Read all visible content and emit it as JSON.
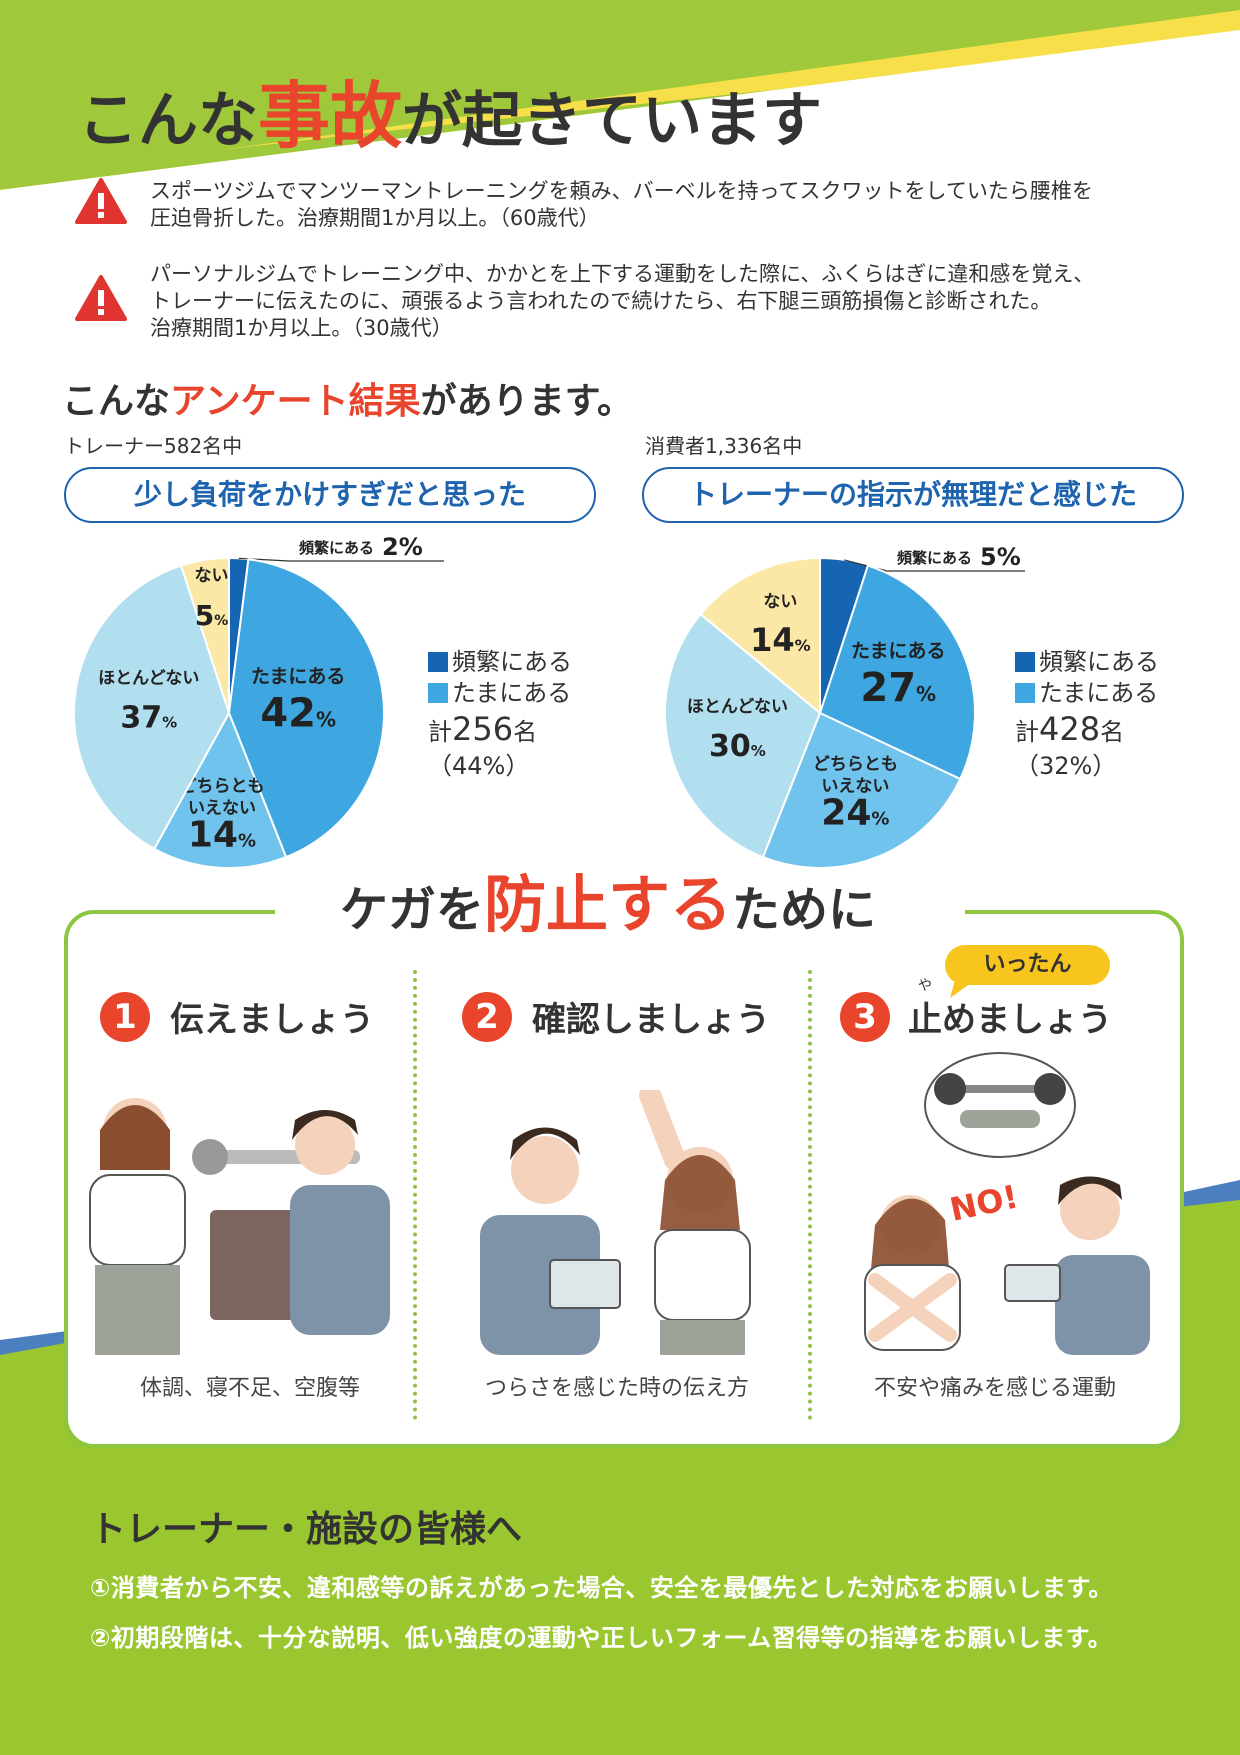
{
  "header": {
    "title_pre": "こんな",
    "title_em": "事故",
    "title_post": "が起きています"
  },
  "accidents": [
    {
      "icon": "warning-icon",
      "lines": [
        "スポーツジムでマンツーマントレーニングを頼み、バーベルを持ってスクワットをしていたら腰椎を",
        "圧迫骨折した。治療期間1か月以上。（60歳代）"
      ]
    },
    {
      "icon": "warning-icon",
      "lines": [
        "パーソナルジムでトレーニング中、かかとを上下する運動をした際に、ふくらはぎに違和感を覚え、",
        "トレーナーに伝えたのに、頑張るよう言われたので続けたら、右下腿三頭筋損傷と診断された。",
        "治療期間1か月以上。（30歳代）"
      ]
    }
  ],
  "survey": {
    "heading_pre": "こんな",
    "heading_em": "アンケート結果",
    "heading_post": "があります。"
  },
  "chart_data": [
    {
      "type": "pie",
      "group_label": "トレーナー582名中",
      "title": "少し負荷をかけすぎだと思った",
      "slices": [
        {
          "label": "頻繁にある",
          "value": 2,
          "color": "#1565b2"
        },
        {
          "label": "たまにある",
          "value": 42,
          "color": "#3ea6e0"
        },
        {
          "label": "どちらともいえない",
          "value": 14,
          "color": "#6fc3ec"
        },
        {
          "label": "ほとんどない",
          "value": 37,
          "color": "#b1dfef"
        },
        {
          "label": "ない",
          "value": 5,
          "color": "#fbe7a6"
        }
      ],
      "legend": [
        "頻繁にある",
        "たまにある"
      ],
      "total_prefix": "計",
      "total_count": "256",
      "total_suffix": "名",
      "total_pct": "（44%）"
    },
    {
      "type": "pie",
      "group_label": "消費者1,336名中",
      "title": "トレーナーの指示が無理だと感じた",
      "slices": [
        {
          "label": "頻繁にある",
          "value": 5,
          "color": "#1565b2"
        },
        {
          "label": "たまにある",
          "value": 27,
          "color": "#3ea6e0"
        },
        {
          "label": "どちらともいえない",
          "value": 24,
          "color": "#6fc3ec"
        },
        {
          "label": "ほとんどない",
          "value": 30,
          "color": "#b1dfef"
        },
        {
          "label": "ない",
          "value": 14,
          "color": "#fbe7a6"
        }
      ],
      "legend": [
        "頻繁にある",
        "たまにある"
      ],
      "total_prefix": "計",
      "total_count": "428",
      "total_suffix": "名",
      "total_pct": "（32%）"
    }
  ],
  "prevention": {
    "heading_pre": "ケガを",
    "heading_em": "防止する",
    "heading_post": "ために",
    "steps": [
      {
        "num": "1",
        "title": "伝えましょう",
        "caption": "体調、寝不足、空腹等"
      },
      {
        "num": "2",
        "title": "確認しましょう",
        "caption": "つらさを感じた時の伝え方"
      },
      {
        "num": "3",
        "title": "止めましょう",
        "ruby": "や",
        "bubble": "いったん",
        "caption": "不安や痛みを感じる運動",
        "no_text": "NO!"
      }
    ]
  },
  "notice": {
    "heading": "トレーナー・施設の皆様へ",
    "items": [
      "①消費者から不安、違和感等の訴えがあった場合、安全を最優先とした対応をお願いします。",
      "②初期段階は、十分な説明、低い強度の運動や正しいフォーム習得等の指導をお願いします。"
    ]
  },
  "colors": {
    "accent_red": "#e8452c",
    "brand_green": "#8cc63f",
    "brand_blue": "#1e63ae",
    "warning_red": "#e03431",
    "highlight_yellow": "#f7c51d"
  }
}
